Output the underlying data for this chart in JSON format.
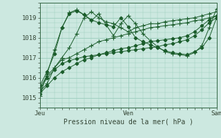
{
  "background_color": "#cce8e0",
  "grid_color": "#99ccbb",
  "line_color": "#1a5c2a",
  "xlabel": "Pression niveau de la mer( hPa )",
  "ylim": [
    1014.5,
    1019.75
  ],
  "yticks": [
    1015,
    1016,
    1017,
    1018,
    1019
  ],
  "day_labels": [
    "Jeu",
    "Ven",
    "Sam"
  ],
  "day_positions": [
    0,
    12,
    24
  ],
  "n_points": 25,
  "series": [
    [
      1015.3,
      1015.7,
      1016.5,
      1017.0,
      1017.5,
      1018.2,
      1019.0,
      1019.3,
      1019.0,
      1018.8,
      1018.7,
      1018.5,
      1018.3,
      1018.5,
      1018.6,
      1018.7,
      1018.7,
      1018.8,
      1018.85,
      1018.9,
      1018.95,
      1019.0,
      1019.1,
      1019.2,
      1019.3
    ],
    [
      1015.5,
      1016.1,
      1016.5,
      1016.9,
      1017.0,
      1017.2,
      1017.4,
      1017.6,
      1017.8,
      1017.9,
      1018.0,
      1018.1,
      1018.2,
      1018.3,
      1018.4,
      1018.5,
      1018.55,
      1018.6,
      1018.65,
      1018.7,
      1018.75,
      1018.85,
      1018.9,
      1019.0,
      1019.1
    ],
    [
      1015.2,
      1015.6,
      1016.0,
      1016.3,
      1016.5,
      1016.7,
      1016.9,
      1017.0,
      1017.15,
      1017.25,
      1017.35,
      1017.45,
      1017.5,
      1017.6,
      1017.7,
      1017.8,
      1017.85,
      1017.9,
      1017.95,
      1018.0,
      1018.1,
      1018.3,
      1018.6,
      1018.9,
      1019.1
    ],
    [
      1015.4,
      1016.0,
      1016.4,
      1016.7,
      1016.85,
      1016.95,
      1017.05,
      1017.1,
      1017.15,
      1017.2,
      1017.25,
      1017.3,
      1017.35,
      1017.4,
      1017.45,
      1017.5,
      1017.55,
      1017.65,
      1017.7,
      1017.8,
      1017.9,
      1018.1,
      1018.4,
      1018.75,
      1019.0
    ],
    [
      1015.6,
      1016.3,
      1017.2,
      1018.5,
      1019.2,
      1019.35,
      1019.15,
      1018.9,
      1018.75,
      1018.65,
      1018.55,
      1019.0,
      1018.55,
      1018.0,
      1017.8,
      1017.65,
      1017.5,
      1017.35,
      1017.25,
      1017.2,
      1017.15,
      1017.3,
      1017.5,
      1018.0,
      1019.0
    ],
    [
      1015.1,
      1016.2,
      1017.4,
      1018.5,
      1019.25,
      1019.4,
      1019.15,
      1018.85,
      1019.2,
      1018.65,
      1018.1,
      1018.7,
      1019.1,
      1018.7,
      1018.2,
      1017.85,
      1017.55,
      1017.3,
      1017.2,
      1017.15,
      1017.1,
      1017.25,
      1017.6,
      1018.5,
      1019.45
    ]
  ],
  "marker_styles": [
    "+",
    "+",
    "D",
    "D",
    "D",
    "+"
  ],
  "marker_sizes": [
    4,
    4,
    2.5,
    2.5,
    2.5,
    4
  ]
}
